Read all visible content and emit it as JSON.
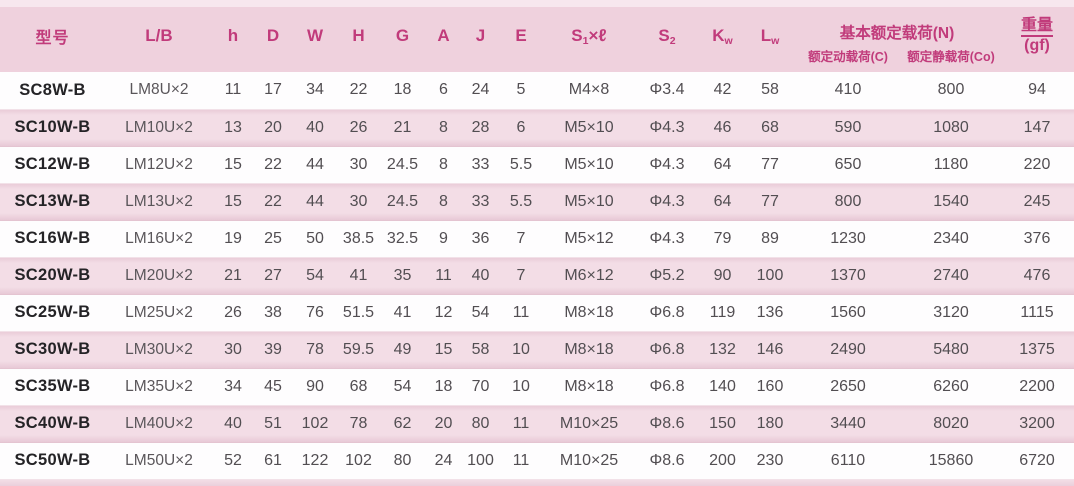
{
  "table": {
    "header": {
      "model": "型号",
      "lb": "L/B",
      "h": "h",
      "d": "D",
      "w": "W",
      "hcap": "H",
      "g": "G",
      "a": "A",
      "j": "J",
      "e": "E",
      "s1": {
        "base": "S",
        "sub": "1",
        "suffix": "×ℓ"
      },
      "s2": {
        "base": "S",
        "sub": "2"
      },
      "kw": {
        "base": "K",
        "sub": "w"
      },
      "lw": {
        "base": "L",
        "sub": "w"
      },
      "load_group": "基本额定载荷(N)",
      "load_dynamic": "额定动载荷(C)",
      "load_static": "额定静载荷(Co)",
      "weight_line1": "重量",
      "weight_line2": "(gf)"
    },
    "rows": [
      {
        "model": "SC8W-B",
        "lb": "LM8U×2",
        "values": [
          "11",
          "17",
          "34",
          "22",
          "18",
          "6",
          "24",
          "5",
          "M4×8",
          "Φ3.4",
          "42",
          "58",
          "410",
          "800",
          "94"
        ]
      },
      {
        "model": "SC10W-B",
        "lb": "LM10U×2",
        "values": [
          "13",
          "20",
          "40",
          "26",
          "21",
          "8",
          "28",
          "6",
          "M5×10",
          "Φ4.3",
          "46",
          "68",
          "590",
          "1080",
          "147"
        ]
      },
      {
        "model": "SC12W-B",
        "lb": "LM12U×2",
        "values": [
          "15",
          "22",
          "44",
          "30",
          "24.5",
          "8",
          "33",
          "5.5",
          "M5×10",
          "Φ4.3",
          "64",
          "77",
          "650",
          "1180",
          "220"
        ]
      },
      {
        "model": "SC13W-B",
        "lb": "LM13U×2",
        "values": [
          "15",
          "22",
          "44",
          "30",
          "24.5",
          "8",
          "33",
          "5.5",
          "M5×10",
          "Φ4.3",
          "64",
          "77",
          "800",
          "1540",
          "245"
        ]
      },
      {
        "model": "SC16W-B",
        "lb": "LM16U×2",
        "values": [
          "19",
          "25",
          "50",
          "38.5",
          "32.5",
          "9",
          "36",
          "7",
          "M5×12",
          "Φ4.3",
          "79",
          "89",
          "1230",
          "2340",
          "376"
        ]
      },
      {
        "model": "SC20W-B",
        "lb": "LM20U×2",
        "values": [
          "21",
          "27",
          "54",
          "41",
          "35",
          "11",
          "40",
          "7",
          "M6×12",
          "Φ5.2",
          "90",
          "100",
          "1370",
          "2740",
          "476"
        ]
      },
      {
        "model": "SC25W-B",
        "lb": "LM25U×2",
        "values": [
          "26",
          "38",
          "76",
          "51.5",
          "41",
          "12",
          "54",
          "11",
          "M8×18",
          "Φ6.8",
          "119",
          "136",
          "1560",
          "3120",
          "1115"
        ]
      },
      {
        "model": "SC30W-B",
        "lb": "LM30U×2",
        "values": [
          "30",
          "39",
          "78",
          "59.5",
          "49",
          "15",
          "58",
          "10",
          "M8×18",
          "Φ6.8",
          "132",
          "146",
          "2490",
          "5480",
          "1375"
        ]
      },
      {
        "model": "SC35W-B",
        "lb": "LM35U×2",
        "values": [
          "34",
          "45",
          "90",
          "68",
          "54",
          "18",
          "70",
          "10",
          "M8×18",
          "Φ6.8",
          "140",
          "160",
          "2650",
          "6260",
          "2200"
        ]
      },
      {
        "model": "SC40W-B",
        "lb": "LM40U×2",
        "values": [
          "40",
          "51",
          "102",
          "78",
          "62",
          "20",
          "80",
          "11",
          "M10×25",
          "Φ8.6",
          "150",
          "180",
          "3440",
          "8020",
          "3200"
        ]
      },
      {
        "model": "SC50W-B",
        "lb": "LM50U×2",
        "values": [
          "52",
          "61",
          "122",
          "102",
          "80",
          "24",
          "100",
          "11",
          "M10×25",
          "Φ8.6",
          "200",
          "230",
          "6110",
          "15860",
          "6720"
        ]
      }
    ]
  },
  "colors": {
    "header_text": "#c13b7b",
    "header_bg": "#efd1dd",
    "pink_row_bg": "#f3dde6",
    "body_text": "#524e52"
  }
}
